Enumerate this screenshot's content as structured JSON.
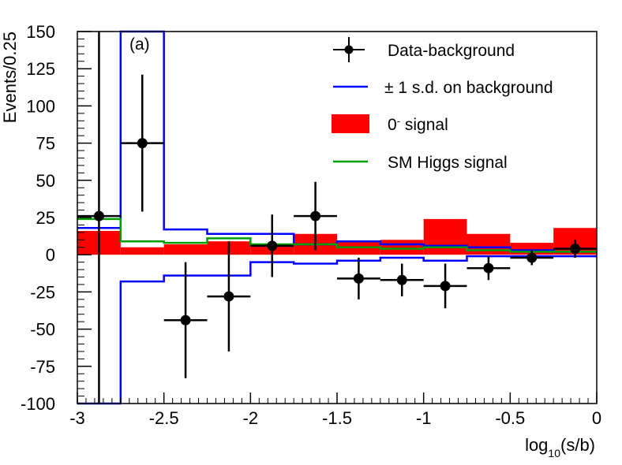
{
  "chart_data": {
    "type": "histogram",
    "panel_label": "(a)",
    "xlabel": {
      "prefix": "log",
      "subscript": "10",
      "suffix": "(s/b)"
    },
    "ylabel": "Events/0.25",
    "xlim": [
      -3,
      0
    ],
    "ylim": [
      -100,
      150
    ],
    "x_ticks": [
      -3,
      -2.5,
      -2,
      -1.5,
      -1,
      -0.5,
      0
    ],
    "x_tick_labels": [
      "-3",
      "-2.5",
      "-2",
      "-1.5",
      "-1",
      "-0.5",
      "0"
    ],
    "y_ticks": [
      -100,
      -75,
      -50,
      -25,
      0,
      25,
      50,
      75,
      100,
      125,
      150
    ],
    "y_tick_labels": [
      "-100",
      "-75",
      "-50",
      "-25",
      "0",
      "25",
      "50",
      "75",
      "100",
      "125",
      "150"
    ],
    "bin_edges": [
      -3,
      -2.75,
      -2.5,
      -2.25,
      -2,
      -1.75,
      -1.5,
      -1.25,
      -1,
      -0.75,
      -0.5,
      -0.25,
      0
    ],
    "series": [
      {
        "name": "0- signal",
        "kind": "filled-histogram",
        "color": "#ff0000",
        "values": [
          16,
          5,
          7,
          9,
          7,
          14,
          9,
          10,
          24,
          14,
          8,
          18
        ]
      },
      {
        "name": "+1 s.d. on background",
        "kind": "step-line",
        "color": "#0000ff",
        "values": [
          18,
          150,
          17,
          14,
          14,
          7,
          9,
          7,
          6,
          5,
          3,
          2
        ]
      },
      {
        "name": "-1 s.d. on background",
        "kind": "step-line",
        "color": "#0000ff",
        "values": [
          -100,
          -18,
          -14,
          -14,
          -5,
          -6,
          -4,
          -2,
          -4,
          -1,
          -1,
          -1
        ]
      },
      {
        "name": "SM Higgs signal",
        "kind": "step-line",
        "color": "#00a000",
        "values": [
          24,
          9,
          8,
          11,
          7,
          7,
          5,
          4,
          5,
          3,
          2,
          2
        ]
      },
      {
        "name": "Data-background",
        "kind": "points-with-errors",
        "color": "#000000",
        "x": [
          -2.875,
          -2.625,
          -2.375,
          -2.125,
          -1.875,
          -1.625,
          -1.375,
          -1.125,
          -0.875,
          -0.625,
          -0.375,
          -0.125
        ],
        "y": [
          26,
          75,
          -44,
          -28,
          6,
          26,
          -16,
          -17,
          -21,
          -9,
          -2,
          4
        ],
        "yerr_low": [
          126,
          46,
          39,
          37,
          21,
          23,
          14,
          11,
          15,
          8,
          5,
          6
        ],
        "yerr_high": [
          124,
          46,
          39,
          37,
          21,
          23,
          14,
          11,
          15,
          8,
          5,
          6
        ]
      }
    ],
    "legend": {
      "placement": "top-right",
      "entries": [
        {
          "marker": "point",
          "label": "Data-background"
        },
        {
          "marker": "blue-line",
          "label": "± 1 s.d. on background"
        },
        {
          "marker": "red-box",
          "label_main": "0",
          "label_sup": "-",
          "label_rest": " signal"
        },
        {
          "marker": "green-line",
          "label": "SM Higgs signal"
        }
      ]
    },
    "colors": {
      "signal": "#ff0000",
      "band": "#0000ff",
      "higgs": "#00a000",
      "data": "#000000"
    }
  }
}
